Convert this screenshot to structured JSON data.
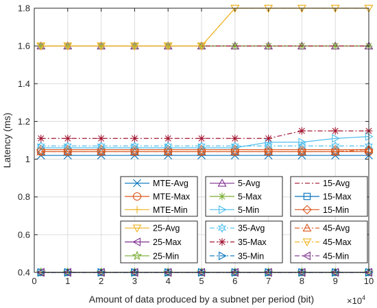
{
  "chart_data": {
    "type": "line",
    "xlabel": "Amount of data produced by a subnet per period (bit)",
    "x_exponent_label": "×10",
    "x_exponent_power": "4",
    "ylabel": "Latency (ms)",
    "xlim": [
      0,
      10
    ],
    "ylim": [
      0.4,
      1.8
    ],
    "x": [
      0.2,
      1,
      2,
      3,
      4,
      5,
      6,
      7,
      8,
      9,
      10
    ],
    "x_ticks": [
      "0",
      "1",
      "2",
      "3",
      "4",
      "5",
      "6",
      "7",
      "8",
      "9",
      "10"
    ],
    "y_ticks": [
      "0.4",
      "0.6",
      "0.8",
      "1",
      "1.2",
      "1.4",
      "1.6",
      "1.8"
    ],
    "grid": true,
    "legend_placement": "lower-right, three boxes of three columns",
    "series": [
      {
        "name": "MTE-Avg",
        "color": "#0072BD",
        "dash": "solid",
        "marker": "x",
        "values": [
          1.02,
          1.02,
          1.02,
          1.02,
          1.02,
          1.02,
          1.02,
          1.02,
          1.02,
          1.02,
          1.02
        ]
      },
      {
        "name": "MTE-Max",
        "color": "#D95319",
        "dash": "solid",
        "marker": "circle",
        "values": [
          1.04,
          1.04,
          1.04,
          1.04,
          1.04,
          1.04,
          1.04,
          1.04,
          1.04,
          1.04,
          1.04
        ]
      },
      {
        "name": "MTE-Min",
        "color": "#EDB120",
        "dash": "solid",
        "marker": "plus",
        "values": [
          0.4,
          0.4,
          0.4,
          0.4,
          0.4,
          0.4,
          0.4,
          0.4,
          0.4,
          0.4,
          0.4
        ]
      },
      {
        "name": "5-Avg",
        "color": "#7E2F8E",
        "dash": "solid",
        "marker": "triangle-up",
        "values": [
          1.6,
          1.6,
          1.6,
          1.6,
          1.6,
          1.6,
          1.6,
          1.6,
          1.6,
          1.6,
          1.6
        ]
      },
      {
        "name": "5-Max",
        "color": "#77AC30",
        "dash": "solid",
        "marker": "asterisk",
        "values": [
          1.6,
          1.6,
          1.6,
          1.6,
          1.6,
          1.6,
          1.6,
          1.6,
          1.6,
          1.6,
          1.6
        ]
      },
      {
        "name": "5-Min",
        "color": "#4DBEEE",
        "dash": "solid",
        "marker": "triangle-right",
        "values": [
          1.06,
          1.06,
          1.06,
          1.06,
          1.06,
          1.06,
          1.06,
          1.09,
          1.09,
          1.11,
          1.12
        ]
      },
      {
        "name": "15-Avg",
        "color": "#A2142F",
        "dash": "dashdot",
        "marker": "none",
        "values": [
          1.6,
          1.6,
          1.6,
          1.6,
          1.6,
          1.6,
          1.6,
          1.6,
          1.6,
          1.6,
          1.6
        ]
      },
      {
        "name": "15-Max",
        "color": "#0072BD",
        "dash": "solid",
        "marker": "square",
        "values": [
          0.4,
          0.4,
          0.4,
          0.4,
          0.4,
          0.4,
          0.4,
          0.4,
          0.4,
          0.4,
          0.4
        ]
      },
      {
        "name": "15-Min",
        "color": "#D95319",
        "dash": "solid",
        "marker": "diamond",
        "values": [
          1.05,
          1.05,
          1.05,
          1.05,
          1.05,
          1.05,
          1.05,
          1.05,
          1.05,
          1.05,
          1.05
        ]
      },
      {
        "name": "25-Avg",
        "color": "#EDB120",
        "dash": "solid",
        "marker": "triangle-down",
        "values": [
          1.6,
          1.6,
          1.6,
          1.6,
          1.6,
          1.6,
          1.8,
          1.8,
          1.8,
          1.8,
          1.8
        ]
      },
      {
        "name": "25-Max",
        "color": "#7E2F8E",
        "dash": "solid",
        "marker": "triangle-left",
        "values": [
          0.4,
          0.4,
          0.4,
          0.4,
          0.4,
          0.4,
          0.4,
          0.4,
          0.4,
          0.4,
          0.4
        ]
      },
      {
        "name": "25-Min",
        "color": "#77AC30",
        "dash": "solid",
        "marker": "pentagram",
        "values": [
          0.4,
          0.4,
          0.4,
          0.4,
          0.4,
          0.4,
          0.4,
          0.4,
          0.4,
          0.4,
          0.4
        ]
      },
      {
        "name": "35-Avg",
        "color": "#4DBEEE",
        "dash": "dashdot",
        "marker": "hexagram",
        "values": [
          1.07,
          1.07,
          1.07,
          1.07,
          1.07,
          1.07,
          1.07,
          1.07,
          1.07,
          1.07,
          1.07
        ]
      },
      {
        "name": "35-Max",
        "color": "#A2142F",
        "dash": "dashdot",
        "marker": "asterisk",
        "values": [
          1.11,
          1.11,
          1.11,
          1.11,
          1.11,
          1.11,
          1.11,
          1.11,
          1.15,
          1.15,
          1.15
        ]
      },
      {
        "name": "35-Min",
        "color": "#0072BD",
        "dash": "dashdot",
        "marker": "triangle-right",
        "values": [
          0.4,
          0.4,
          0.4,
          0.4,
          0.4,
          0.4,
          0.4,
          0.4,
          0.4,
          0.4,
          0.4
        ]
      },
      {
        "name": "45-Avg",
        "color": "#D95319",
        "dash": "dashdot",
        "marker": "triangle-up",
        "values": [
          1.04,
          1.04,
          1.04,
          1.04,
          1.04,
          1.04,
          1.04,
          1.04,
          1.04,
          1.04,
          1.05
        ]
      },
      {
        "name": "45-Max",
        "color": "#EDB120",
        "dash": "dashdot",
        "marker": "triangle-down",
        "values": [
          1.6,
          1.6,
          1.6,
          1.6,
          1.6,
          1.6,
          1.8,
          1.8,
          1.8,
          1.8,
          1.8
        ]
      },
      {
        "name": "45-Min",
        "color": "#7E2F8E",
        "dash": "dashdot",
        "marker": "triangle-left",
        "values": [
          0.4,
          0.4,
          0.4,
          0.4,
          0.4,
          0.4,
          0.4,
          0.4,
          0.4,
          0.4,
          0.4
        ]
      }
    ]
  }
}
